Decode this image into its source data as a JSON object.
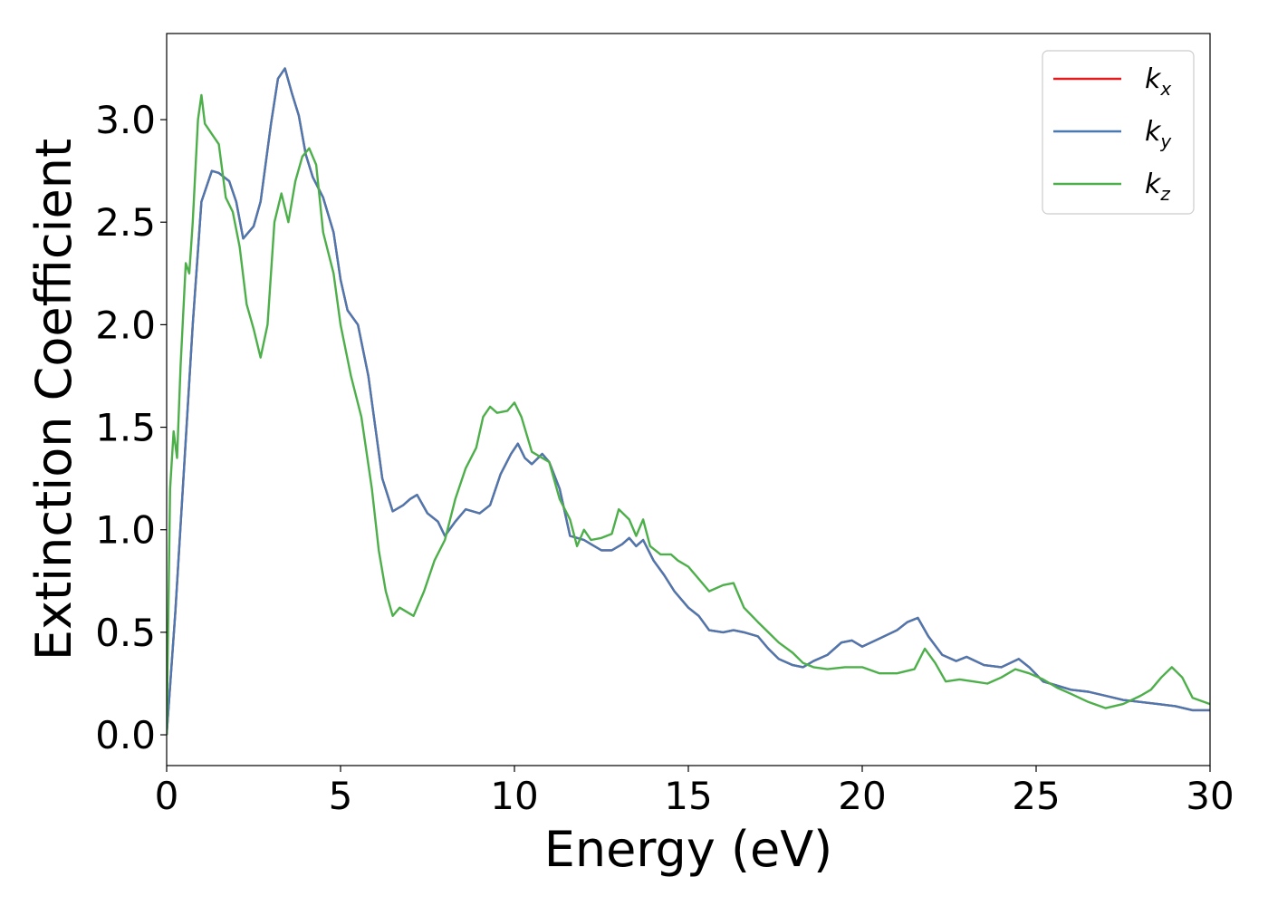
{
  "chart_data": {
    "type": "line",
    "title": "",
    "xlabel": "Energy (eV)",
    "ylabel": "Extinction Coefficient",
    "xlim": [
      0,
      30
    ],
    "ylim": [
      -0.15,
      3.42
    ],
    "xticks": [
      0,
      5,
      10,
      15,
      20,
      25,
      30
    ],
    "xtick_labels": [
      "0",
      "5",
      "10",
      "15",
      "20",
      "25",
      "30"
    ],
    "yticks": [
      0,
      0.5,
      1,
      1.5,
      2,
      2.5,
      3
    ],
    "ytick_labels": [
      "0.0",
      "0.5",
      "1.0",
      "1.5",
      "2.0",
      "2.5",
      "3.0"
    ],
    "grid": false,
    "legend": {
      "position": "top-right"
    },
    "colors": {
      "kx": "#e41a1c",
      "ky": "#4a78b0",
      "kz": "#4daf4a"
    },
    "series": [
      {
        "key": "kx",
        "name_base": "k",
        "name_sub": "x",
        "color": "#e41a1c",
        "x": [
          0,
          0.25,
          0.5,
          0.75,
          1.0,
          1.3,
          1.5,
          1.8,
          2.0,
          2.2,
          2.5,
          2.7,
          3.0,
          3.2,
          3.4,
          3.6,
          3.8,
          4.0,
          4.2,
          4.5,
          4.8,
          5.0,
          5.2,
          5.5,
          5.8,
          6.0,
          6.2,
          6.5,
          6.8,
          7.0,
          7.2,
          7.5,
          7.8,
          8.0,
          8.3,
          8.6,
          9.0,
          9.3,
          9.6,
          9.9,
          10.1,
          10.3,
          10.5,
          10.8,
          11.0,
          11.3,
          11.6,
          12.0,
          12.2,
          12.5,
          12.8,
          13.1,
          13.3,
          13.5,
          13.7,
          14.0,
          14.3,
          14.6,
          15.0,
          15.3,
          15.6,
          16.0,
          16.3,
          16.6,
          17.0,
          17.3,
          17.6,
          18.0,
          18.3,
          18.6,
          19.0,
          19.4,
          19.7,
          20.0,
          20.5,
          21.0,
          21.3,
          21.6,
          21.9,
          22.3,
          22.7,
          23.0,
          23.5,
          24.0,
          24.5,
          24.8,
          25.2,
          25.6,
          26.0,
          26.5,
          27.0,
          27.5,
          28.0,
          28.5,
          29.0,
          29.5,
          30.0
        ],
        "y": [
          0.0,
          0.6,
          1.3,
          2.0,
          2.6,
          2.75,
          2.74,
          2.7,
          2.6,
          2.42,
          2.48,
          2.6,
          2.98,
          3.2,
          3.25,
          3.13,
          3.02,
          2.83,
          2.72,
          2.62,
          2.45,
          2.22,
          2.07,
          2.0,
          1.75,
          1.5,
          1.25,
          1.09,
          1.12,
          1.15,
          1.17,
          1.08,
          1.04,
          0.97,
          1.04,
          1.1,
          1.08,
          1.12,
          1.27,
          1.37,
          1.42,
          1.35,
          1.32,
          1.37,
          1.33,
          1.2,
          0.97,
          0.95,
          0.93,
          0.9,
          0.9,
          0.93,
          0.96,
          0.92,
          0.95,
          0.85,
          0.78,
          0.7,
          0.62,
          0.58,
          0.51,
          0.5,
          0.51,
          0.5,
          0.48,
          0.42,
          0.37,
          0.34,
          0.33,
          0.36,
          0.39,
          0.45,
          0.46,
          0.43,
          0.47,
          0.51,
          0.55,
          0.57,
          0.48,
          0.39,
          0.36,
          0.38,
          0.34,
          0.33,
          0.37,
          0.33,
          0.26,
          0.24,
          0.22,
          0.21,
          0.19,
          0.17,
          0.16,
          0.15,
          0.14,
          0.12,
          0.12
        ]
      },
      {
        "key": "ky",
        "name_base": "k",
        "name_sub": "y",
        "color": "#4a78b0",
        "x": [
          0,
          0.25,
          0.5,
          0.75,
          1.0,
          1.3,
          1.5,
          1.8,
          2.0,
          2.2,
          2.5,
          2.7,
          3.0,
          3.2,
          3.4,
          3.6,
          3.8,
          4.0,
          4.2,
          4.5,
          4.8,
          5.0,
          5.2,
          5.5,
          5.8,
          6.0,
          6.2,
          6.5,
          6.8,
          7.0,
          7.2,
          7.5,
          7.8,
          8.0,
          8.3,
          8.6,
          9.0,
          9.3,
          9.6,
          9.9,
          10.1,
          10.3,
          10.5,
          10.8,
          11.0,
          11.3,
          11.6,
          12.0,
          12.2,
          12.5,
          12.8,
          13.1,
          13.3,
          13.5,
          13.7,
          14.0,
          14.3,
          14.6,
          15.0,
          15.3,
          15.6,
          16.0,
          16.3,
          16.6,
          17.0,
          17.3,
          17.6,
          18.0,
          18.3,
          18.6,
          19.0,
          19.4,
          19.7,
          20.0,
          20.5,
          21.0,
          21.3,
          21.6,
          21.9,
          22.3,
          22.7,
          23.0,
          23.5,
          24.0,
          24.5,
          24.8,
          25.2,
          25.6,
          26.0,
          26.5,
          27.0,
          27.5,
          28.0,
          28.5,
          29.0,
          29.5,
          30.0
        ],
        "y": [
          0.0,
          0.6,
          1.3,
          2.0,
          2.6,
          2.75,
          2.74,
          2.7,
          2.6,
          2.42,
          2.48,
          2.6,
          2.98,
          3.2,
          3.25,
          3.13,
          3.02,
          2.83,
          2.72,
          2.62,
          2.45,
          2.22,
          2.07,
          2.0,
          1.75,
          1.5,
          1.25,
          1.09,
          1.12,
          1.15,
          1.17,
          1.08,
          1.04,
          0.97,
          1.04,
          1.1,
          1.08,
          1.12,
          1.27,
          1.37,
          1.42,
          1.35,
          1.32,
          1.37,
          1.33,
          1.2,
          0.97,
          0.95,
          0.93,
          0.9,
          0.9,
          0.93,
          0.96,
          0.92,
          0.95,
          0.85,
          0.78,
          0.7,
          0.62,
          0.58,
          0.51,
          0.5,
          0.51,
          0.5,
          0.48,
          0.42,
          0.37,
          0.34,
          0.33,
          0.36,
          0.39,
          0.45,
          0.46,
          0.43,
          0.47,
          0.51,
          0.55,
          0.57,
          0.48,
          0.39,
          0.36,
          0.38,
          0.34,
          0.33,
          0.37,
          0.33,
          0.26,
          0.24,
          0.22,
          0.21,
          0.19,
          0.17,
          0.16,
          0.15,
          0.14,
          0.12,
          0.12
        ]
      },
      {
        "key": "kz",
        "name_base": "k",
        "name_sub": "z",
        "color": "#4daf4a",
        "x": [
          0,
          0.1,
          0.2,
          0.3,
          0.4,
          0.55,
          0.65,
          0.75,
          0.9,
          1.0,
          1.1,
          1.3,
          1.5,
          1.7,
          1.9,
          2.1,
          2.3,
          2.5,
          2.7,
          2.9,
          3.1,
          3.3,
          3.5,
          3.7,
          3.9,
          4.1,
          4.3,
          4.5,
          4.8,
          5.0,
          5.3,
          5.6,
          5.9,
          6.1,
          6.3,
          6.5,
          6.7,
          6.9,
          7.1,
          7.4,
          7.7,
          8.0,
          8.3,
          8.6,
          8.9,
          9.1,
          9.3,
          9.5,
          9.8,
          10.0,
          10.2,
          10.5,
          10.8,
          11.0,
          11.3,
          11.6,
          11.8,
          12.0,
          12.2,
          12.5,
          12.8,
          13.0,
          13.3,
          13.5,
          13.7,
          13.9,
          14.2,
          14.5,
          14.7,
          15.0,
          15.3,
          15.6,
          16.0,
          16.3,
          16.6,
          17.0,
          17.3,
          17.6,
          18.0,
          18.3,
          18.6,
          19.0,
          19.5,
          20.0,
          20.5,
          21.0,
          21.5,
          21.8,
          22.1,
          22.4,
          22.8,
          23.2,
          23.6,
          24.0,
          24.4,
          24.8,
          25.2,
          25.6,
          26.0,
          26.5,
          27.0,
          27.5,
          28.0,
          28.3,
          28.6,
          28.9,
          29.2,
          29.5,
          30.0
        ],
        "y": [
          0.0,
          1.2,
          1.48,
          1.35,
          1.8,
          2.3,
          2.25,
          2.5,
          3.0,
          3.12,
          2.98,
          2.93,
          2.88,
          2.62,
          2.55,
          2.38,
          2.1,
          1.98,
          1.84,
          2.0,
          2.5,
          2.64,
          2.5,
          2.7,
          2.82,
          2.86,
          2.78,
          2.45,
          2.25,
          2.0,
          1.75,
          1.55,
          1.2,
          0.9,
          0.7,
          0.58,
          0.62,
          0.6,
          0.58,
          0.7,
          0.85,
          0.95,
          1.15,
          1.3,
          1.4,
          1.55,
          1.6,
          1.57,
          1.58,
          1.62,
          1.55,
          1.38,
          1.35,
          1.33,
          1.15,
          1.05,
          0.92,
          1.0,
          0.95,
          0.96,
          0.98,
          1.1,
          1.05,
          0.97,
          1.05,
          0.92,
          0.88,
          0.88,
          0.85,
          0.82,
          0.76,
          0.7,
          0.73,
          0.74,
          0.62,
          0.55,
          0.5,
          0.45,
          0.4,
          0.35,
          0.33,
          0.32,
          0.33,
          0.33,
          0.3,
          0.3,
          0.32,
          0.42,
          0.35,
          0.26,
          0.27,
          0.26,
          0.25,
          0.28,
          0.32,
          0.3,
          0.27,
          0.23,
          0.2,
          0.16,
          0.13,
          0.15,
          0.19,
          0.22,
          0.28,
          0.33,
          0.28,
          0.18,
          0.15
        ]
      }
    ]
  }
}
